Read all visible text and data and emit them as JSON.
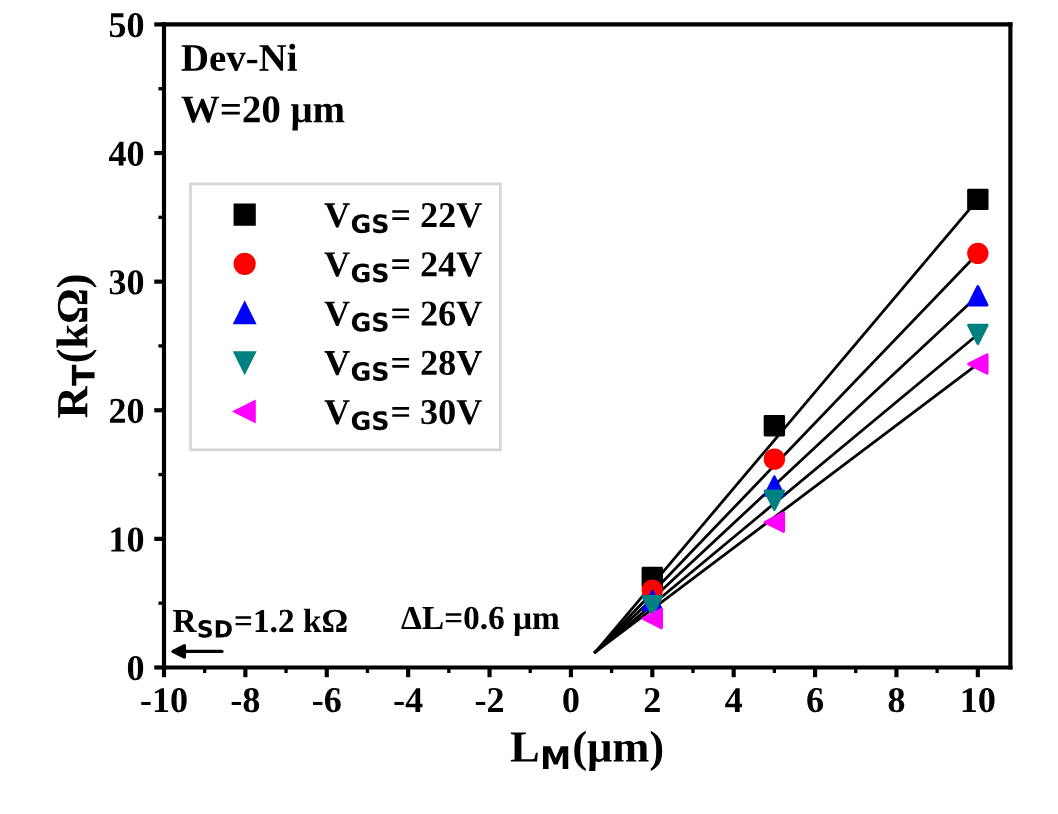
{
  "chart_data": {
    "type": "scatter",
    "xlabel": "L$_{M}$(μm)",
    "ylabel": "R$_{T}$(kΩ)",
    "xlim": [
      -10,
      10.8
    ],
    "ylim": [
      0,
      50
    ],
    "xticks": [
      -10,
      -8,
      -6,
      -4,
      -2,
      0,
      2,
      4,
      6,
      8,
      10
    ],
    "yticks": [
      0,
      10,
      20,
      30,
      40,
      50
    ],
    "grid": false,
    "legend": "top left",
    "legend_title": "Dev-Ni\nW=20 μm",
    "annotations": [
      "R$_{SD}$=1.2 kΩ",
      "ΔL=0.6 μm"
    ],
    "series": [
      {
        "name": "V$_{GS}$= 22V",
        "color": "#000000",
        "marker": "square",
        "x": [
          2,
          5,
          10
        ],
        "values": [
          7.0,
          18.8,
          36.4
        ]
      },
      {
        "name": "V$_{GS}$= 24V",
        "color": "#ff0000",
        "marker": "circle",
        "x": [
          2,
          5,
          10
        ],
        "values": [
          6.0,
          16.2,
          32.2
        ]
      },
      {
        "name": "V$_{GS}$= 26V",
        "color": "#0000ff",
        "marker": "triangle",
        "x": [
          2,
          5,
          10
        ],
        "values": [
          5.2,
          14.1,
          28.9
        ]
      },
      {
        "name": "V$_{GS}$= 28V",
        "color": "#008080",
        "marker": "triangle-down",
        "x": [
          2,
          5,
          10
        ],
        "values": [
          4.8,
          13.0,
          25.9
        ]
      },
      {
        "name": "V$_{GS}$= 30V",
        "color": "#ff00ff",
        "marker": "triangle-left",
        "x": [
          2,
          5,
          10
        ],
        "values": [
          3.8,
          11.3,
          23.6
        ]
      },
      {
        "type": "line",
        "color": "#000000",
        "marker": "none",
        "x": [
          0.6,
          10
        ],
        "values": [
          1.2,
          36.4
        ]
      },
      {
        "type": "line",
        "color": "#000000",
        "marker": "none",
        "x": [
          0.6,
          10
        ],
        "values": [
          1.2,
          32.2
        ]
      },
      {
        "type": "line",
        "color": "#000000",
        "marker": "none",
        "x": [
          0.6,
          10
        ],
        "values": [
          1.2,
          28.9
        ]
      },
      {
        "type": "line",
        "color": "#000000",
        "marker": "none",
        "x": [
          0.6,
          10
        ],
        "values": [
          1.2,
          25.9
        ]
      },
      {
        "type": "line",
        "color": "#000000",
        "marker": "none",
        "x": [
          0.6,
          10
        ],
        "values": [
          1.2,
          23.6
        ]
      }
    ]
  }
}
